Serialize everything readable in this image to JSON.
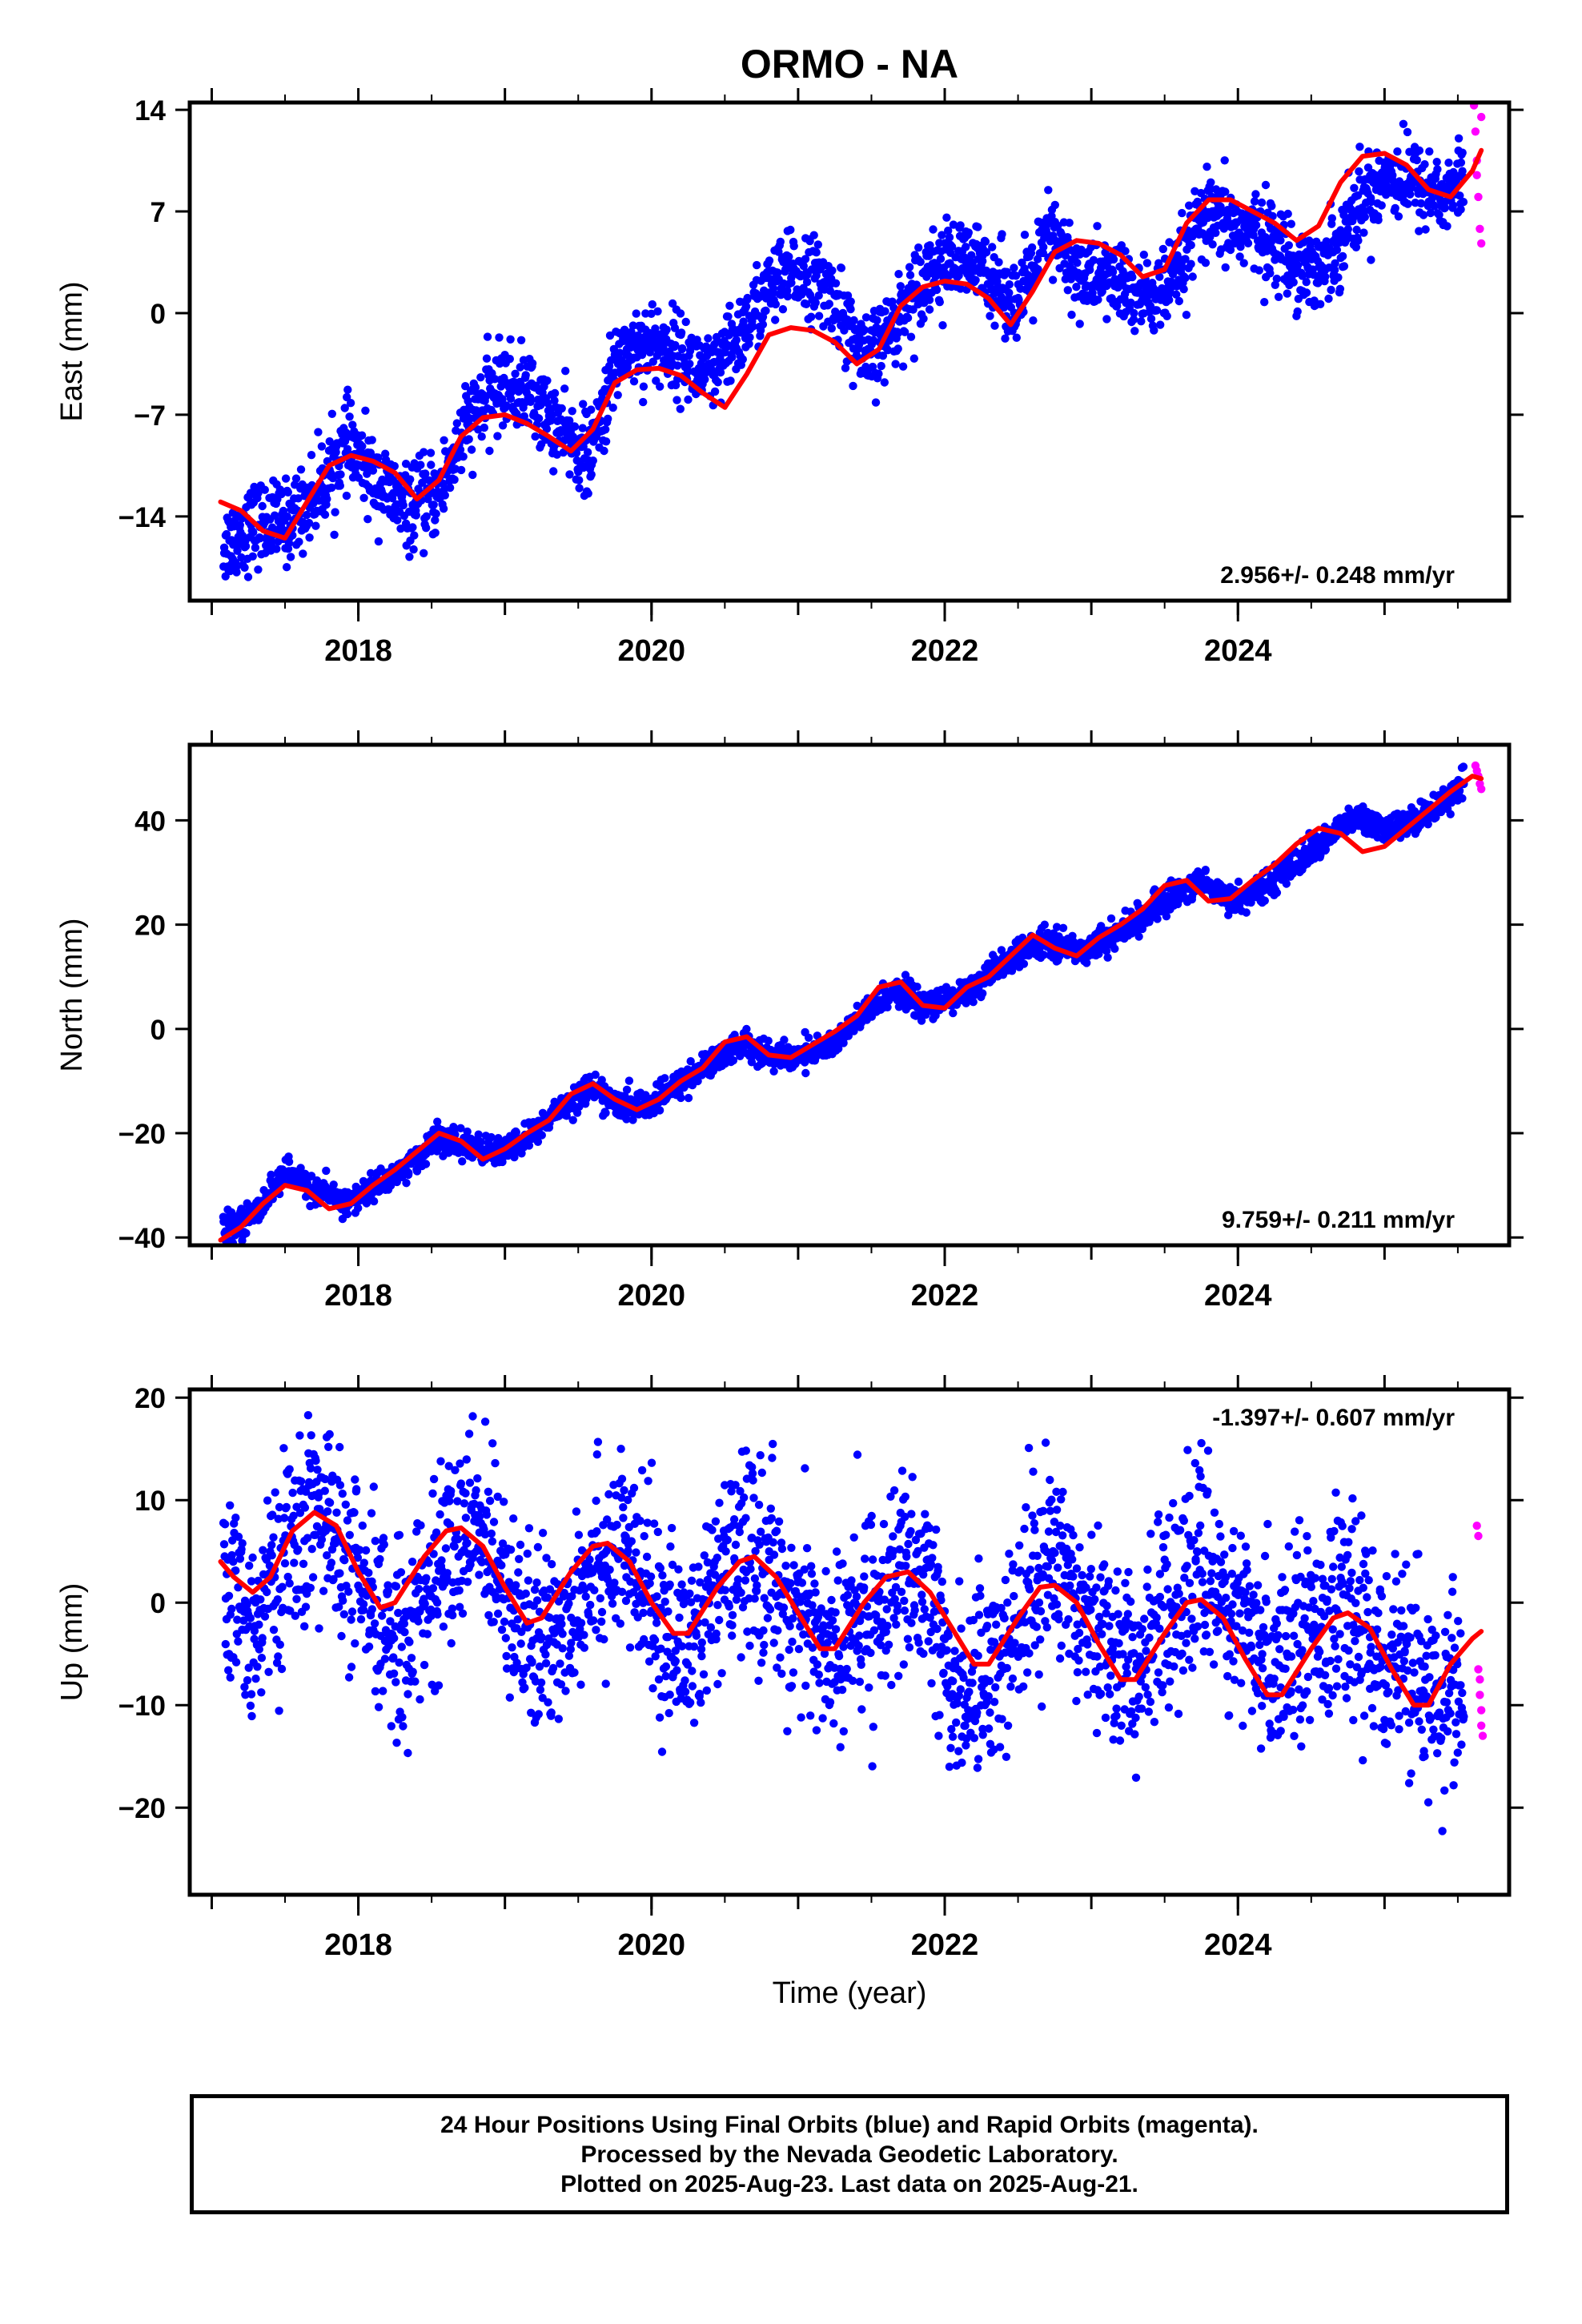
{
  "title": "ORMO - NA",
  "chart_data": [
    {
      "type": "scatter",
      "ylabel": "East (mm)",
      "xlabel": "",
      "xlim": [
        2016.85,
        2025.85
      ],
      "ylim": [
        -19.8,
        14.5
      ],
      "yticks": [
        14,
        7,
        0,
        -7,
        -14
      ],
      "ytick_labels": [
        "14",
        "7",
        "0",
        "−7",
        "−14"
      ],
      "xticks": [
        2018,
        2020,
        2022,
        2024
      ],
      "xtick_labels": [
        "2018",
        "2020",
        "2022",
        "2024"
      ],
      "velocity_label": "2.956+/- 0.248 mm/yr",
      "velocity_position": "bottom-right",
      "final_orbits": {
        "color": "#0000ff",
        "x": [
          2017.08,
          2017.29,
          2017.5,
          2017.71,
          2017.92,
          2018.12,
          2018.33,
          2018.54,
          2018.75,
          2018.96,
          2019.17,
          2019.37,
          2019.58,
          2019.79,
          2020.0,
          2020.21,
          2020.42,
          2020.63,
          2020.83,
          2021.04,
          2021.25,
          2021.46,
          2021.67,
          2021.88,
          2022.08,
          2022.29,
          2022.5,
          2022.71,
          2022.92,
          2023.13,
          2023.33,
          2023.54,
          2023.75,
          2023.96,
          2024.17,
          2024.38,
          2024.58,
          2024.79,
          2025.0,
          2025.21,
          2025.42,
          2025.54
        ],
        "y": [
          -16.0,
          -14.5,
          -14.5,
          -12.5,
          -9.0,
          -11.5,
          -13.5,
          -12.5,
          -7.5,
          -5.0,
          -5.5,
          -8.0,
          -10.0,
          -2.5,
          -2.0,
          -3.0,
          -4.5,
          -1.0,
          2.0,
          3.0,
          1.0,
          -3.5,
          -0.5,
          3.0,
          3.5,
          3.0,
          0.5,
          5.5,
          2.5,
          2.5,
          1.0,
          1.5,
          6.5,
          6.0,
          5.5,
          3.5,
          3.0,
          7.0,
          9.5,
          9.0,
          8.0,
          9.5
        ],
        "spread": 1.4
      },
      "rapid_orbits": {
        "color": "#ff00ff",
        "x": [
          2025.61,
          2025.62,
          2025.63,
          2025.63,
          2025.64,
          2025.65,
          2025.66,
          2025.66
        ],
        "y": [
          14.3,
          12.5,
          10.5,
          9.5,
          8.0,
          5.8,
          4.8,
          13.5
        ]
      },
      "model_fit": {
        "color": "#ff0000",
        "x": [
          2017.06,
          2017.2,
          2017.35,
          2017.5,
          2017.65,
          2017.8,
          2017.95,
          2018.1,
          2018.25,
          2018.4,
          2018.55,
          2018.7,
          2018.85,
          2019.0,
          2019.15,
          2019.3,
          2019.45,
          2019.6,
          2019.75,
          2019.9,
          2020.05,
          2020.2,
          2020.35,
          2020.5,
          2020.65,
          2020.8,
          2020.95,
          2021.1,
          2021.25,
          2021.4,
          2021.55,
          2021.7,
          2021.85,
          2022.0,
          2022.15,
          2022.3,
          2022.45,
          2022.6,
          2022.75,
          2022.9,
          2023.05,
          2023.2,
          2023.35,
          2023.5,
          2023.65,
          2023.8,
          2023.95,
          2024.1,
          2024.25,
          2024.4,
          2024.55,
          2024.7,
          2024.85,
          2025.0,
          2025.15,
          2025.3,
          2025.45,
          2025.6,
          2025.66
        ],
        "y": [
          -13.0,
          -13.6,
          -15.0,
          -15.5,
          -13.0,
          -10.5,
          -9.8,
          -10.2,
          -11.0,
          -12.8,
          -11.5,
          -8.5,
          -7.2,
          -7.0,
          -7.6,
          -8.5,
          -9.5,
          -8.0,
          -4.8,
          -3.9,
          -3.8,
          -4.3,
          -5.5,
          -6.5,
          -4.2,
          -1.5,
          -1.0,
          -1.2,
          -2.0,
          -3.5,
          -2.5,
          0.5,
          1.8,
          2.2,
          2.0,
          1.0,
          -0.8,
          1.5,
          4.2,
          5.0,
          4.8,
          4.0,
          2.5,
          3.0,
          6.2,
          7.8,
          7.8,
          7.0,
          6.2,
          5.0,
          6.0,
          9.0,
          10.8,
          11.0,
          10.2,
          8.5,
          8.0,
          9.8,
          11.2
        ]
      }
    },
    {
      "type": "scatter",
      "ylabel": "North (mm)",
      "xlabel": "",
      "xlim": [
        2016.85,
        2025.85
      ],
      "ylim": [
        -41.5,
        54.5
      ],
      "yticks": [
        40,
        20,
        0,
        -20,
        -40
      ],
      "ytick_labels": [
        "40",
        "20",
        "0",
        "−20",
        "−40"
      ],
      "xticks": [
        2018,
        2020,
        2022,
        2024
      ],
      "xtick_labels": [
        "2018",
        "2020",
        "2022",
        "2024"
      ],
      "velocity_label": "9.759+/- 0.211 mm/yr",
      "velocity_position": "bottom-right",
      "final_orbits": {
        "color": "#0000ff",
        "x": [
          2017.08,
          2017.29,
          2017.5,
          2017.71,
          2017.92,
          2018.12,
          2018.33,
          2018.54,
          2018.75,
          2018.96,
          2019.17,
          2019.37,
          2019.58,
          2019.79,
          2020.0,
          2020.21,
          2020.42,
          2020.63,
          2020.83,
          2021.04,
          2021.25,
          2021.46,
          2021.67,
          2021.88,
          2022.08,
          2022.29,
          2022.5,
          2022.71,
          2022.92,
          2023.13,
          2023.33,
          2023.54,
          2023.75,
          2023.96,
          2024.17,
          2024.38,
          2024.58,
          2024.79,
          2025.0,
          2025.21,
          2025.42,
          2025.54
        ],
        "y": [
          -38.5,
          -35.5,
          -27.5,
          -31.0,
          -33.5,
          -30.0,
          -26.5,
          -21.0,
          -22.5,
          -24.0,
          -20.5,
          -15.5,
          -11.0,
          -15.0,
          -14.5,
          -10.0,
          -6.0,
          -2.5,
          -5.5,
          -5.0,
          -2.5,
          3.0,
          7.5,
          4.0,
          6.0,
          10.0,
          14.5,
          17.0,
          15.0,
          17.5,
          21.0,
          25.5,
          28.5,
          24.5,
          27.0,
          31.5,
          36.0,
          40.5,
          38.0,
          40.0,
          44.0,
          48.0
        ],
        "spread": 1.3
      },
      "rapid_orbits": {
        "color": "#ff00ff",
        "x": [
          2025.62,
          2025.63,
          2025.64,
          2025.65,
          2025.66
        ],
        "y": [
          50.5,
          49.5,
          48.5,
          47.0,
          46.0
        ]
      },
      "model_fit": {
        "color": "#ff0000",
        "x": [
          2017.06,
          2017.2,
          2017.35,
          2017.5,
          2017.65,
          2017.8,
          2017.95,
          2018.1,
          2018.25,
          2018.4,
          2018.55,
          2018.7,
          2018.85,
          2019.0,
          2019.15,
          2019.3,
          2019.45,
          2019.6,
          2019.75,
          2019.9,
          2020.05,
          2020.2,
          2020.35,
          2020.5,
          2020.65,
          2020.8,
          2020.95,
          2021.1,
          2021.25,
          2021.4,
          2021.55,
          2021.7,
          2021.85,
          2022.0,
          2022.15,
          2022.3,
          2022.45,
          2022.6,
          2022.75,
          2022.9,
          2023.05,
          2023.2,
          2023.35,
          2023.5,
          2023.65,
          2023.8,
          2023.95,
          2024.1,
          2024.25,
          2024.4,
          2024.55,
          2024.7,
          2024.85,
          2025.0,
          2025.15,
          2025.3,
          2025.45,
          2025.6,
          2025.66
        ],
        "y": [
          -40.5,
          -38.0,
          -33.5,
          -30.0,
          -31.0,
          -34.5,
          -33.5,
          -30.0,
          -27.0,
          -23.5,
          -20.0,
          -21.5,
          -25.0,
          -23.0,
          -20.0,
          -17.5,
          -12.5,
          -10.5,
          -13.5,
          -15.5,
          -13.5,
          -10.0,
          -7.5,
          -2.5,
          -1.5,
          -5.0,
          -5.5,
          -3.0,
          -0.5,
          2.5,
          8.0,
          9.0,
          4.5,
          4.0,
          8.0,
          10.0,
          14.0,
          18.0,
          15.5,
          14.0,
          17.5,
          20.0,
          23.0,
          27.5,
          28.5,
          24.5,
          25.0,
          28.5,
          31.5,
          35.5,
          38.5,
          37.5,
          34.0,
          35.0,
          38.5,
          42.0,
          45.5,
          48.5,
          48.0
        ]
      }
    },
    {
      "type": "scatter",
      "ylabel": "Up (mm)",
      "xlabel": "Time (year)",
      "xlim": [
        2016.85,
        2025.85
      ],
      "ylim": [
        -28.5,
        20.8
      ],
      "yticks": [
        20,
        10,
        0,
        -10,
        -20
      ],
      "ytick_labels": [
        "20",
        "10",
        "0",
        "−10",
        "−20"
      ],
      "xticks": [
        2018,
        2020,
        2022,
        2024
      ],
      "xtick_labels": [
        "2018",
        "2020",
        "2022",
        "2024"
      ],
      "velocity_label": "-1.397+/- 0.607 mm/yr",
      "velocity_position": "top-right",
      "final_orbits": {
        "color": "#0000ff",
        "x": [
          2017.08,
          2017.29,
          2017.5,
          2017.71,
          2017.92,
          2018.12,
          2018.33,
          2018.54,
          2018.75,
          2018.96,
          2019.17,
          2019.37,
          2019.58,
          2019.79,
          2020.0,
          2020.21,
          2020.42,
          2020.63,
          2020.83,
          2021.04,
          2021.25,
          2021.46,
          2021.67,
          2021.88,
          2022.08,
          2022.29,
          2022.5,
          2022.71,
          2022.92,
          2023.13,
          2023.33,
          2023.54,
          2023.75,
          2023.96,
          2024.17,
          2024.38,
          2024.58,
          2024.79,
          2025.0,
          2025.21,
          2025.42,
          2025.54
        ],
        "y": [
          0.5,
          -2.0,
          4.0,
          9.5,
          4.0,
          -2.0,
          -3.0,
          3.0,
          7.5,
          5.0,
          -5.0,
          -3.0,
          4.0,
          5.0,
          0.0,
          -5.0,
          0.0,
          5.5,
          2.5,
          -2.0,
          -5.0,
          -1.0,
          2.0,
          1.0,
          -9.0,
          -7.0,
          -2.0,
          5.0,
          1.0,
          -4.0,
          -7.0,
          1.0,
          3.5,
          -1.0,
          -6.0,
          -3.0,
          -1.0,
          -1.5,
          -5.0,
          -8.0,
          -9.0,
          -8.0
        ],
        "spread": 4.6
      },
      "rapid_orbits": {
        "color": "#ff00ff",
        "x": [
          2025.63,
          2025.64,
          2025.64,
          2025.65,
          2025.65,
          2025.66,
          2025.66,
          2025.67
        ],
        "y": [
          7.5,
          6.5,
          -6.5,
          -7.5,
          -9.0,
          -10.5,
          -12.0,
          -13.0
        ]
      },
      "model_fit": {
        "color": "#ff0000",
        "x": [
          2017.06,
          2017.15,
          2017.28,
          2017.4,
          2017.55,
          2017.7,
          2017.85,
          2018.0,
          2018.15,
          2018.25,
          2018.45,
          2018.6,
          2018.7,
          2018.85,
          2019.0,
          2019.15,
          2019.25,
          2019.45,
          2019.6,
          2019.7,
          2019.85,
          2020.0,
          2020.15,
          2020.25,
          2020.45,
          2020.6,
          2020.7,
          2020.85,
          2021.0,
          2021.15,
          2021.25,
          2021.45,
          2021.6,
          2021.75,
          2021.9,
          2022.05,
          2022.2,
          2022.3,
          2022.5,
          2022.65,
          2022.75,
          2022.9,
          2023.05,
          2023.2,
          2023.3,
          2023.5,
          2023.65,
          2023.75,
          2023.9,
          2024.05,
          2024.2,
          2024.3,
          2024.5,
          2024.65,
          2024.75,
          2024.9,
          2025.05,
          2025.2,
          2025.3,
          2025.45,
          2025.6,
          2025.66
        ],
        "y": [
          4.0,
          2.5,
          1.0,
          2.5,
          7.0,
          8.8,
          7.5,
          3.0,
          -0.5,
          0.0,
          4.5,
          7.0,
          7.3,
          5.5,
          1.5,
          -2.0,
          -1.5,
          3.0,
          5.5,
          5.8,
          4.0,
          0.0,
          -3.0,
          -3.0,
          1.5,
          4.0,
          4.5,
          2.5,
          -1.0,
          -4.5,
          -4.5,
          0.0,
          2.5,
          3.0,
          1.0,
          -2.5,
          -6.0,
          -6.0,
          -1.5,
          1.5,
          1.7,
          0.0,
          -4.0,
          -7.5,
          -7.5,
          -3.0,
          0.0,
          0.3,
          -1.5,
          -5.5,
          -9.0,
          -9.0,
          -4.5,
          -1.5,
          -1.0,
          -2.5,
          -6.5,
          -10.0,
          -10.0,
          -6.0,
          -3.5,
          -2.8
        ]
      }
    }
  ],
  "footer": {
    "line1": "24 Hour Positions Using Final Orbits (blue) and Rapid Orbits (magenta).",
    "line2": "Processed by the Nevada Geodetic Laboratory.",
    "line3": "Plotted on 2025-Aug-23. Last data on 2025-Aug-21."
  }
}
